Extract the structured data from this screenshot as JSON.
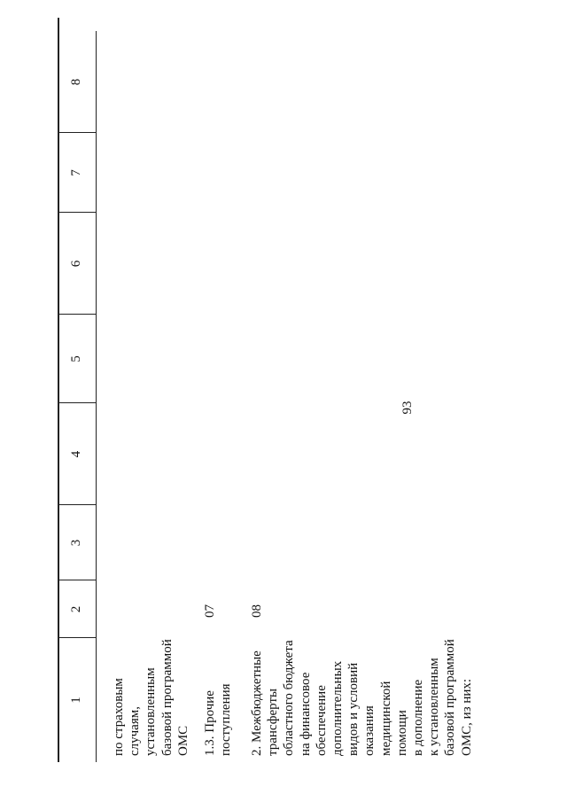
{
  "header": {
    "page_number": "93"
  },
  "table": {
    "columns": [
      "1",
      "2",
      "3",
      "4",
      "5",
      "6",
      "7",
      "8"
    ],
    "rows": [
      {
        "lines": [
          "по страховым",
          "случаям,",
          "установленным",
          "базовой программой",
          "ОМС"
        ]
      },
      {
        "lines": [
          "1.3. Прочие",
          "поступления"
        ],
        "code": "07"
      },
      {
        "lines": [
          "2. Межбюджетные",
          "трансферты",
          "областного бюджета",
          "на финансовое",
          "обеспечение",
          "дополнительных",
          "видов и условий",
          "оказания",
          "медицинской",
          "помощи",
          "в дополнение",
          "к установленным",
          "базовой программой",
          "ОМС, из них:"
        ],
        "code": "08"
      }
    ]
  }
}
